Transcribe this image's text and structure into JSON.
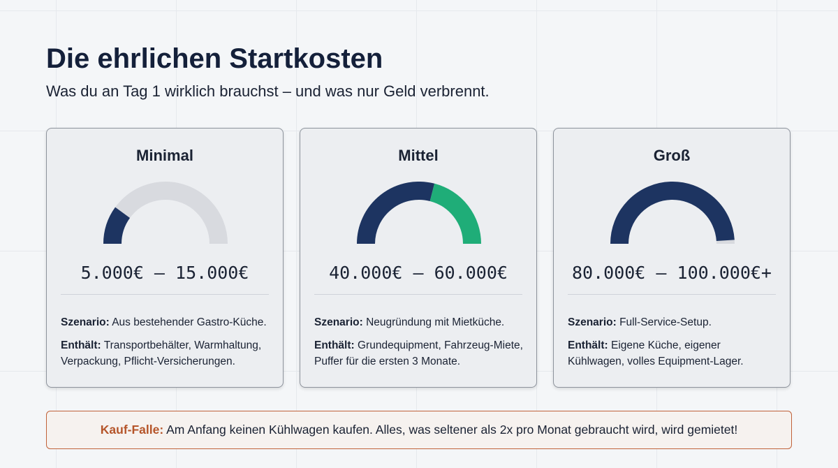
{
  "header": {
    "title": "Die ehrlichen Startkosten",
    "subtitle": "Was du an Tag 1 wirklich brauchst – und was nur Geld verbrennt."
  },
  "cards": [
    {
      "title": "Minimal",
      "range": "5.000€ – 15.000€",
      "gauge": [
        {
          "value": 20,
          "color": "#1d3461"
        }
      ],
      "gauge_track": "#d8dadf",
      "scenario_label": "Szenario:",
      "scenario": "Aus bestehender Gastro-Küche.",
      "contents_label": "Enthält:",
      "contents": "Transportbehälter, Warmhaltung, Verpackung, Pflicht-Versicherungen."
    },
    {
      "title": "Mittel",
      "range": "40.000€ – 60.000€",
      "gauge": [
        {
          "value": 58,
          "color": "#1d3461"
        },
        {
          "value": 42,
          "color": "#1fad78"
        }
      ],
      "gauge_track": "#d8dadf",
      "scenario_label": "Szenario:",
      "scenario": "Neugründung mit Mietküche.",
      "contents_label": "Enthält:",
      "contents": "Grundequipment, Fahrzeug-Miete, Puffer für die ersten 3 Monate."
    },
    {
      "title": "Groß",
      "range": "80.000€ – 100.000€+",
      "gauge": [
        {
          "value": 98,
          "color": "#1d3461"
        }
      ],
      "gauge_track": "#d8dadf",
      "scenario_label": "Szenario:",
      "scenario": "Full-Service-Setup.",
      "contents_label": "Enthält:",
      "contents": "Eigene Küche, eigener Kühlwagen, volles Equipment-Lager."
    }
  ],
  "callout": {
    "label": "Kauf-Falle:",
    "text": "Am Anfang keinen Kühlwagen kaufen. Alles, was seltener als 2x pro Monat gebraucht wird, wird gemietet!"
  }
}
